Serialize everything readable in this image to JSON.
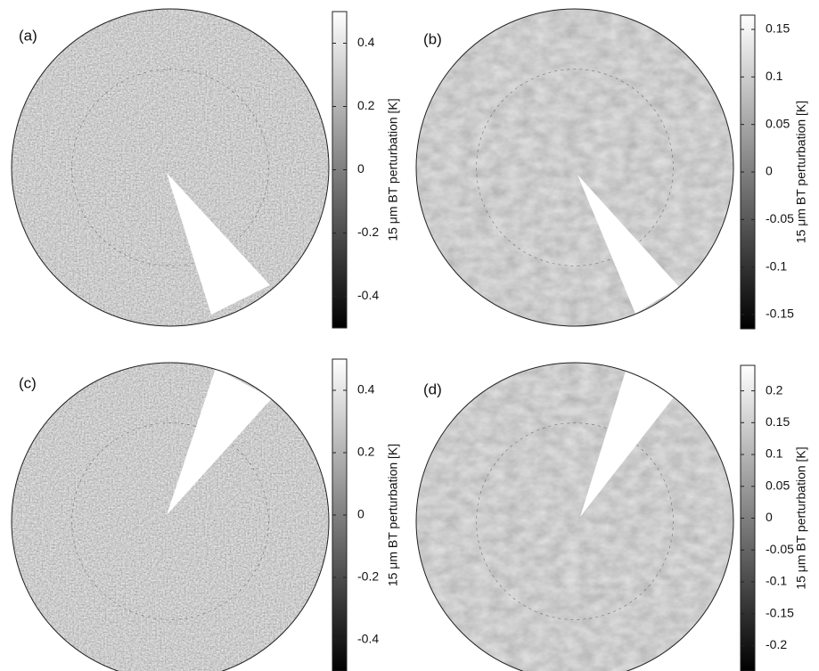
{
  "chart_data": [
    {
      "type": "map",
      "panel_label": "(a)",
      "colorbar_label": "15 μm BT perturbation [K]",
      "colormap": "gray",
      "clim": [
        -0.5,
        0.5
      ],
      "cticks": [
        0.4,
        0.2,
        0,
        -0.2,
        -0.4
      ]
    },
    {
      "type": "map",
      "panel_label": "(b)",
      "colorbar_label": "15 μm BT perturbation [K]",
      "colormap": "gray",
      "clim": [
        -0.165,
        0.165
      ],
      "cticks": [
        0.15,
        0.1,
        0.05,
        0,
        -0.05,
        -0.1,
        -0.15
      ]
    },
    {
      "type": "map",
      "panel_label": "(c)",
      "colorbar_label": "15 μm BT perturbation [K]",
      "colormap": "gray",
      "clim": [
        -0.5,
        0.5
      ],
      "cticks": [
        0.4,
        0.2,
        0,
        -0.2,
        -0.4
      ]
    },
    {
      "type": "map",
      "panel_label": "(d)",
      "colorbar_label": "15 μm BT perturbation [K]",
      "colormap": "gray",
      "clim": [
        -0.24,
        0.24
      ],
      "cticks": [
        0.2,
        0.15,
        0.1,
        0.05,
        0,
        -0.05,
        -0.1,
        -0.15,
        -0.2
      ]
    }
  ]
}
